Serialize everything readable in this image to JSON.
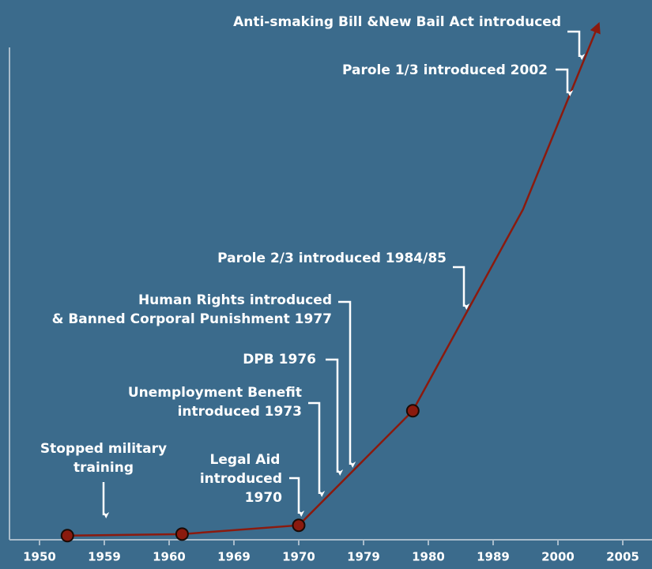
{
  "chart_data": {
    "type": "line",
    "xticks": [
      {
        "value": 0,
        "label": "1950"
      },
      {
        "value": 1,
        "label": "1959"
      },
      {
        "value": 2,
        "label": "1960"
      },
      {
        "value": 3,
        "label": "1969"
      },
      {
        "value": 4,
        "label": "1970"
      },
      {
        "value": 5,
        "label": "1979"
      },
      {
        "value": 6,
        "label": "1980"
      },
      {
        "value": 7,
        "label": "1989"
      },
      {
        "value": 8,
        "label": "2000"
      },
      {
        "value": 9,
        "label": "2005"
      }
    ],
    "xlim": [
      -0.5,
      9.5
    ],
    "ylim": [
      0,
      100
    ],
    "series": [
      {
        "color": "#8b1a0e",
        "x": [
          0.43,
          2.2,
          4,
          5.76,
          7.46,
          8.63
        ],
        "values": [
          0.8,
          1.1,
          2.8,
          25,
          64,
          100
        ],
        "markers": [
          true,
          true,
          true,
          true,
          false,
          false
        ]
      }
    ],
    "annotations": [
      {
        "lines": [
          "Anti-smaking Bill &New Bail Act introduced"
        ]
      },
      {
        "lines": [
          "Parole 1/3 introduced 2002"
        ]
      },
      {
        "lines": [
          "Parole 2/3 introduced 1984/85"
        ]
      },
      {
        "lines": [
          "Human Rights introduced",
          "& Banned Corporal Punishment 1977"
        ]
      },
      {
        "lines": [
          "DPB 1976"
        ]
      },
      {
        "lines": [
          "Unemployment Benefit",
          "introduced 1973"
        ]
      },
      {
        "lines": [
          "Legal Aid",
          "introduced",
          "1970"
        ]
      },
      {
        "lines": [
          "Stopped military",
          "training"
        ]
      }
    ]
  }
}
